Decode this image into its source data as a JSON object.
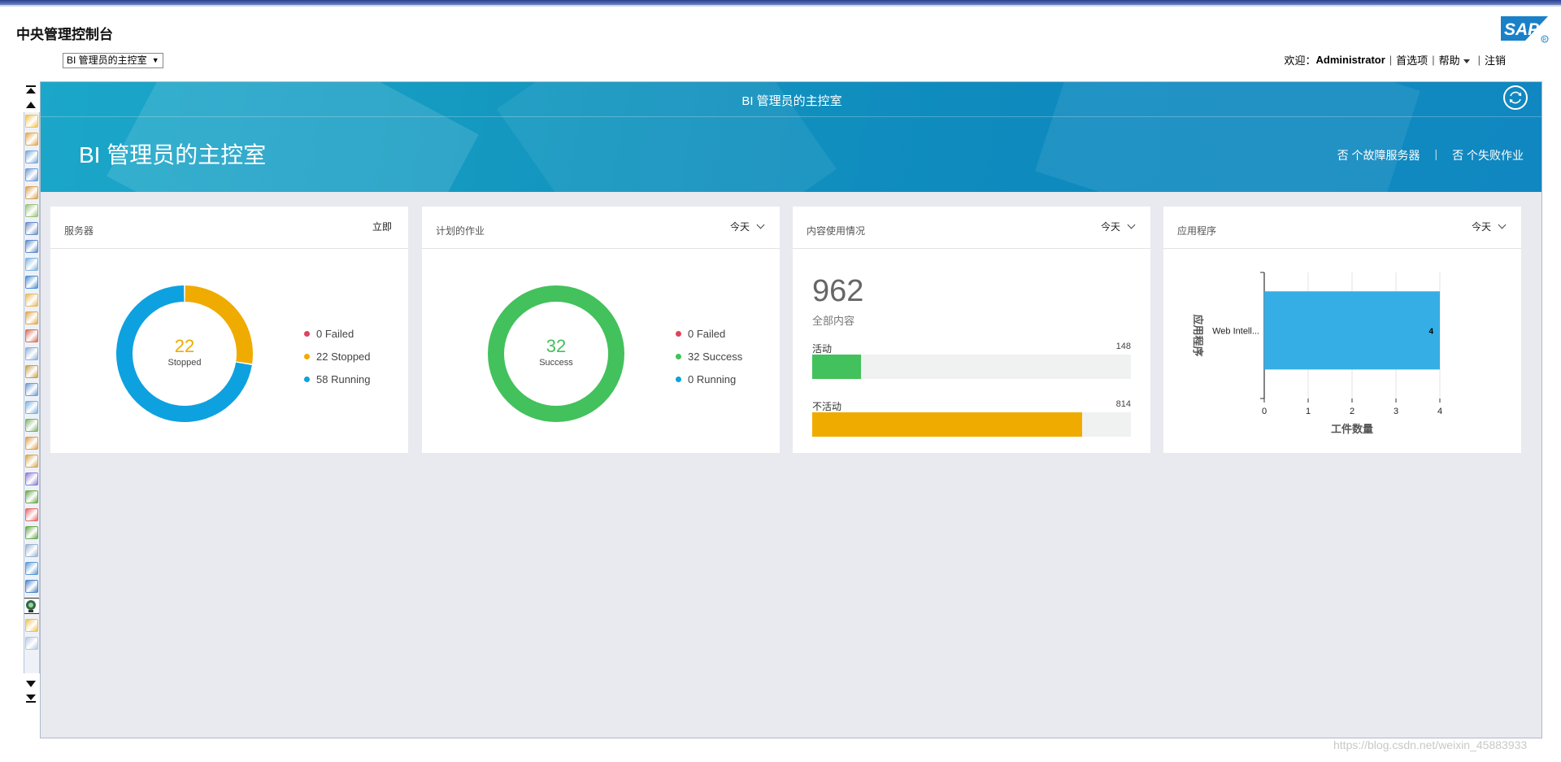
{
  "header": {
    "app_title": "中央管理控制台",
    "console_select": "BI 管理员的主控室",
    "logo_text": "SAP",
    "welcome_label": "欢迎：",
    "user_name": "Administrator",
    "preferences": "首选项",
    "help": "帮助",
    "logout": "注销"
  },
  "banner": {
    "subtitle": "BI 管理员的主控室",
    "title": "BI 管理员的主控室",
    "failed_servers": "否 个故障服务器",
    "failed_jobs": "否 个失败作业"
  },
  "cards": {
    "servers": {
      "title": "服务器",
      "control": "立即",
      "total": "22",
      "center_label": "Stopped",
      "legend": [
        "0 Failed",
        "22 Stopped",
        "58 Running"
      ],
      "values": {
        "failed": 0,
        "stopped": 22,
        "running": 58
      },
      "colors": {
        "failed": "#e0435c",
        "stopped": "#f0ab00",
        "running": "#0ea1e0"
      }
    },
    "jobs": {
      "title": "计划的作业",
      "control": "今天",
      "total": "32",
      "center_label": "Success",
      "legend": [
        "0 Failed",
        "32 Success",
        "0 Running"
      ],
      "values": {
        "failed": 0,
        "success": 32,
        "running": 0
      },
      "colors": {
        "failed": "#e0435c",
        "success": "#43c15c",
        "running": "#0ea1e0"
      }
    },
    "content": {
      "title": "内容使用情况",
      "control": "今天",
      "total": "962",
      "total_label": "全部内容",
      "active_label": "活动",
      "active_value": "148",
      "inactive_label": "不活动",
      "inactive_value": "814",
      "colors": {
        "active": "#43c15c",
        "inactive": "#f0ab00"
      }
    },
    "applications": {
      "title": "应用程序",
      "control": "今天"
    }
  },
  "chart_data": {
    "type": "bar",
    "orientation": "horizontal",
    "categories": [
      "Web Intell..."
    ],
    "values": [
      4
    ],
    "xlabel": "工件数量",
    "ylabel": "应用程序",
    "xlim": [
      0,
      4
    ],
    "xticks": [
      "0",
      "1",
      "2",
      "3",
      "4"
    ],
    "data_labels": [
      "4"
    ],
    "color": "#35aee5",
    "grid": true
  },
  "watermark": "https://blog.csdn.net/weixin_45883933"
}
